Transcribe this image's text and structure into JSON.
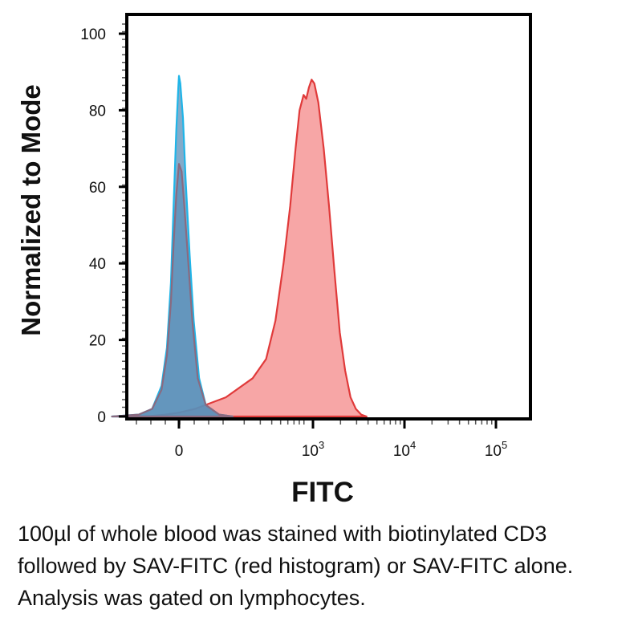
{
  "chart_data": {
    "type": "area",
    "xlabel": "FITC",
    "ylabel": "Normalized to Mode",
    "yticks": [
      "0",
      "20",
      "40",
      "60",
      "80",
      "100"
    ],
    "ylim": [
      0,
      100
    ],
    "xticks": [
      {
        "base": "0",
        "exp": ""
      },
      {
        "base": "10",
        "exp": "3"
      },
      {
        "base": "10",
        "exp": "4"
      },
      {
        "base": "10",
        "exp": "5"
      }
    ],
    "grid": false,
    "series": [
      {
        "color": "#f26b6b",
        "stroke": "#e03a3a",
        "points": [
          [
            -0.25,
            0
          ],
          [
            -0.1,
            0.5
          ],
          [
            0,
            1
          ],
          [
            0.12,
            2
          ],
          [
            0.35,
            5
          ],
          [
            0.55,
            10
          ],
          [
            0.65,
            15
          ],
          [
            0.72,
            25
          ],
          [
            0.78,
            40
          ],
          [
            0.83,
            55
          ],
          [
            0.87,
            70
          ],
          [
            0.9,
            80
          ],
          [
            0.93,
            84
          ],
          [
            0.95,
            83
          ],
          [
            0.97,
            86
          ],
          [
            0.99,
            88
          ],
          [
            1.01,
            87
          ],
          [
            1.04,
            82
          ],
          [
            1.08,
            70
          ],
          [
            1.12,
            55
          ],
          [
            1.16,
            38
          ],
          [
            1.2,
            22
          ],
          [
            1.24,
            12
          ],
          [
            1.28,
            5
          ],
          [
            1.32,
            2
          ],
          [
            1.36,
            0.5
          ],
          [
            1.4,
            0
          ]
        ]
      },
      {
        "color": "#5a8fb8",
        "stroke": "#1fb5e8",
        "points": [
          [
            -0.5,
            0
          ],
          [
            -0.3,
            0.5
          ],
          [
            -0.2,
            2
          ],
          [
            -0.13,
            8
          ],
          [
            -0.09,
            18
          ],
          [
            -0.06,
            35
          ],
          [
            -0.04,
            55
          ],
          [
            -0.02,
            75
          ],
          [
            -0.005,
            86
          ],
          [
            0,
            89
          ],
          [
            0.01,
            87
          ],
          [
            0.03,
            78
          ],
          [
            0.05,
            62
          ],
          [
            0.08,
            42
          ],
          [
            0.11,
            25
          ],
          [
            0.15,
            10
          ],
          [
            0.2,
            3
          ],
          [
            0.3,
            0.5
          ],
          [
            0.4,
            0
          ]
        ]
      },
      {
        "color": "#5a8fb8",
        "stroke": "#8a6a80",
        "points": [
          [
            -0.5,
            0
          ],
          [
            -0.3,
            0.5
          ],
          [
            -0.2,
            2
          ],
          [
            -0.13,
            7
          ],
          [
            -0.09,
            16
          ],
          [
            -0.06,
            30
          ],
          [
            -0.04,
            45
          ],
          [
            -0.02,
            58
          ],
          [
            0,
            66
          ],
          [
            0.02,
            64
          ],
          [
            0.04,
            55
          ],
          [
            0.07,
            40
          ],
          [
            0.1,
            25
          ],
          [
            0.14,
            10
          ],
          [
            0.2,
            3
          ],
          [
            0.3,
            0.5
          ],
          [
            0.4,
            0
          ]
        ]
      }
    ]
  },
  "caption": "100µl of whole blood was stained with biotinylated CD3 followed by SAV-FITC (red histogram) or SAV-FITC alone. Analysis was gated on lymphocytes."
}
